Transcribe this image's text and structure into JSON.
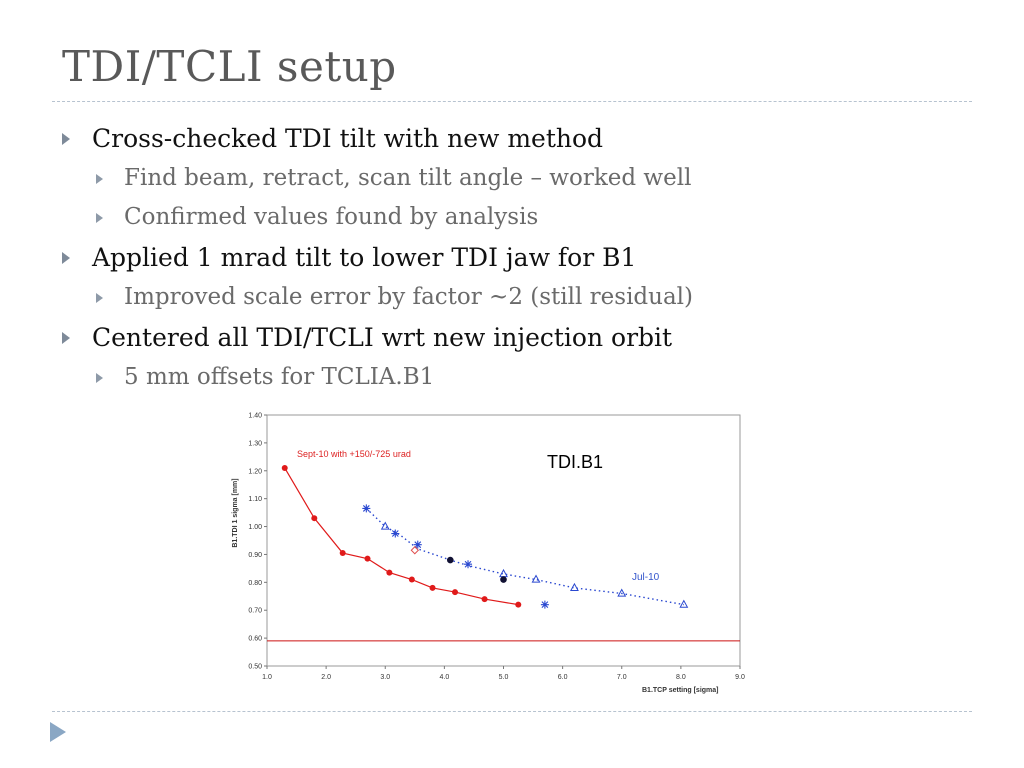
{
  "slide": {
    "title": "TDI/TCLI setup",
    "bullets": [
      {
        "text": "Cross-checked TDI tilt with new method",
        "sub": [
          "Find beam, retract, scan tilt angle – worked well",
          "Confirmed values found by analysis"
        ]
      },
      {
        "text": "Applied 1 mrad tilt to lower TDI jaw for B1",
        "sub": [
          "Improved scale error by factor ~2 (still residual)"
        ]
      },
      {
        "text": "Centered all TDI/TCLI wrt new injection orbit",
        "sub": [
          "5 mm offsets for TCLIA.B1"
        ]
      }
    ]
  },
  "chart_data": {
    "type": "scatter",
    "title": "TDI.B1",
    "xlabel": "B1.TCP setting [sigma]",
    "ylabel": "B1.TDI 1 sigma [mm]",
    "xlim": [
      1.0,
      9.0
    ],
    "ylim": [
      0.5,
      1.4
    ],
    "xticks": [
      "1.0",
      "2.0",
      "3.0",
      "4.0",
      "5.0",
      "6.0",
      "7.0",
      "8.0",
      "9.0"
    ],
    "yticks": [
      "0.50",
      "0.60",
      "0.70",
      "0.80",
      "0.90",
      "1.00",
      "1.10",
      "1.20",
      "1.30",
      "1.40"
    ],
    "hline": {
      "y": 0.59,
      "color": "#cc1111"
    },
    "annotations": [
      {
        "text": "Sept-10 with +150/-725 urad",
        "color": "#dd2222"
      },
      {
        "text": "Jul-10",
        "color": "#3355cc"
      }
    ],
    "series": [
      {
        "name": "Sept-10 with +150/-725 urad",
        "color": "#e01a1a",
        "marker": "circle",
        "line": "solid",
        "x": [
          1.3,
          1.8,
          2.28,
          2.7,
          3.07,
          3.45,
          3.8,
          4.18,
          4.68,
          5.25
        ],
        "y": [
          1.21,
          1.03,
          0.905,
          0.885,
          0.835,
          0.81,
          0.78,
          0.765,
          0.74,
          0.72
        ]
      },
      {
        "name": "Jul-10",
        "color": "#2a48d0",
        "marker": "triangle",
        "line": "dotted",
        "x": [
          2.68,
          3.0,
          3.25,
          3.55,
          4.1,
          4.4,
          5.0,
          5.55,
          6.2,
          7.0,
          8.05
        ],
        "y": [
          1.065,
          1.0,
          0.97,
          0.92,
          0.88,
          0.86,
          0.83,
          0.81,
          0.78,
          0.76,
          0.72
        ]
      },
      {
        "color": "#2a48d0",
        "marker": "triangle-open",
        "line": "none",
        "x": [
          3.0,
          5.0,
          5.55,
          6.2,
          7.0,
          8.05
        ],
        "y": [
          1.0,
          0.83,
          0.81,
          0.78,
          0.76,
          0.72
        ]
      },
      {
        "color": "#2a48d0",
        "marker": "star",
        "line": "none",
        "x": [
          2.68,
          3.17,
          3.55,
          4.4,
          5.7
        ],
        "y": [
          1.065,
          0.975,
          0.935,
          0.865,
          0.72
        ]
      },
      {
        "color": "#111133",
        "marker": "dot",
        "line": "none",
        "x": [
          4.1,
          5.0
        ],
        "y": [
          0.88,
          0.81
        ]
      },
      {
        "color": "#e05050",
        "marker": "diamond-open",
        "line": "none",
        "x": [
          3.5
        ],
        "y": [
          0.915
        ]
      }
    ]
  }
}
